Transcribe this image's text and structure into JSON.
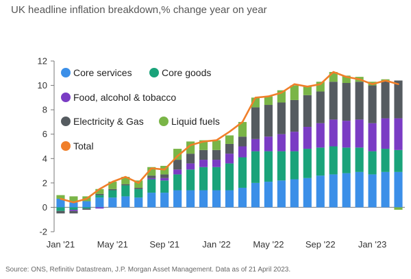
{
  "title": "UK headline inflation breakdown,% change year on year",
  "source": "Source: ONS, Refinitiv Datastream, J.P. Morgan Asset Management. Data as of 21 April 2023.",
  "colors": {
    "core_services": "#3b8fe8",
    "core_goods": "#1aa37a",
    "food": "#7a3cc4",
    "electricity": "#555b60",
    "liquid": "#7ab547",
    "total": "#f07f2a",
    "axis": "#777777"
  },
  "chart_data": {
    "type": "bar",
    "stacked": true,
    "title": "UK headline inflation breakdown,% change year on year",
    "xlabel": "",
    "ylabel": "",
    "ylim": [
      -2,
      12
    ],
    "yticks": [
      -2,
      0,
      2,
      4,
      6,
      8,
      10,
      12
    ],
    "x_tick_labels": [
      {
        "index": 0,
        "label": "Jan '21"
      },
      {
        "index": 4,
        "label": "May '21"
      },
      {
        "index": 8,
        "label": "Sep '21"
      },
      {
        "index": 12,
        "label": "Jan '22"
      },
      {
        "index": 16,
        "label": "May '22"
      },
      {
        "index": 20,
        "label": "Sep '22"
      },
      {
        "index": 24,
        "label": "Jan '23"
      }
    ],
    "categories": [
      "Jan 21",
      "Feb 21",
      "Mar 21",
      "Apr 21",
      "May 21",
      "Jun 21",
      "Jul 21",
      "Aug 21",
      "Sep 21",
      "Oct 21",
      "Nov 21",
      "Dec 21",
      "Jan 22",
      "Feb 22",
      "Mar 22",
      "Apr 22",
      "May 22",
      "Jun 22",
      "Jul 22",
      "Aug 22",
      "Sep 22",
      "Oct 22",
      "Nov 22",
      "Dec 22",
      "Jan 23",
      "Feb 23",
      "Mar 23"
    ],
    "series": [
      {
        "name": "Core services",
        "key": "core_services",
        "values": [
          0.7,
          0.4,
          0.5,
          0.8,
          0.8,
          0.9,
          0.8,
          1.2,
          1.2,
          1.4,
          1.4,
          1.4,
          1.4,
          1.4,
          1.6,
          2.0,
          2.1,
          2.2,
          2.3,
          2.4,
          2.6,
          2.7,
          2.8,
          2.9,
          2.7,
          2.9,
          2.9
        ]
      },
      {
        "name": "Core goods",
        "key": "core_goods",
        "values": [
          -0.3,
          -0.2,
          -0.1,
          0.2,
          0.6,
          0.9,
          0.7,
          1.1,
          1.0,
          1.3,
          1.7,
          1.9,
          1.9,
          2.2,
          2.5,
          2.6,
          2.5,
          2.4,
          2.3,
          2.4,
          2.3,
          2.3,
          2.1,
          2.0,
          1.9,
          1.9,
          1.8
        ]
      },
      {
        "name": "Food, alcohol & tobacco",
        "key": "food",
        "values": [
          0.0,
          -0.1,
          0.0,
          -0.1,
          0.0,
          0.0,
          0.0,
          0.1,
          0.2,
          0.4,
          0.5,
          0.6,
          0.6,
          0.8,
          0.9,
          1.0,
          1.2,
          1.4,
          1.6,
          1.8,
          2.0,
          2.2,
          2.2,
          2.3,
          2.3,
          2.5,
          2.6
        ]
      },
      {
        "name": "Electricity & Gas",
        "key": "electricity",
        "values": [
          -0.2,
          -0.2,
          -0.1,
          0.1,
          0.1,
          0.1,
          0.1,
          0.2,
          0.3,
          0.8,
          0.8,
          0.8,
          0.8,
          0.8,
          0.8,
          2.6,
          2.6,
          2.6,
          2.6,
          2.6,
          2.6,
          3.1,
          3.1,
          3.1,
          3.1,
          3.1,
          3.1
        ]
      },
      {
        "name": "Liquid fuels",
        "key": "liquid",
        "values": [
          0.3,
          0.5,
          0.4,
          0.4,
          0.6,
          0.6,
          0.6,
          0.7,
          0.7,
          0.9,
          1.0,
          0.8,
          0.8,
          0.7,
          1.2,
          0.8,
          0.7,
          1.0,
          1.2,
          0.7,
          0.8,
          0.8,
          0.6,
          0.4,
          0.3,
          0.1,
          -0.2
        ]
      }
    ],
    "total": {
      "name": "Total",
      "key": "total",
      "values": [
        0.7,
        0.4,
        0.7,
        1.5,
        2.1,
        2.5,
        2.0,
        3.2,
        3.1,
        4.2,
        5.1,
        5.4,
        5.5,
        6.2,
        7.0,
        9.0,
        9.1,
        9.4,
        10.1,
        9.9,
        10.1,
        11.1,
        10.7,
        10.5,
        10.1,
        10.4,
        10.1
      ]
    },
    "legend": [
      {
        "label": "Core services",
        "key": "core_services"
      },
      {
        "label": "Core goods",
        "key": "core_goods"
      },
      {
        "label": "Food, alcohol & tobacco",
        "key": "food"
      },
      {
        "label": "Electricity & Gas",
        "key": "electricity"
      },
      {
        "label": "Liquid fuels",
        "key": "liquid"
      },
      {
        "label": "Total",
        "key": "total"
      }
    ],
    "legend_position": "top-left"
  }
}
